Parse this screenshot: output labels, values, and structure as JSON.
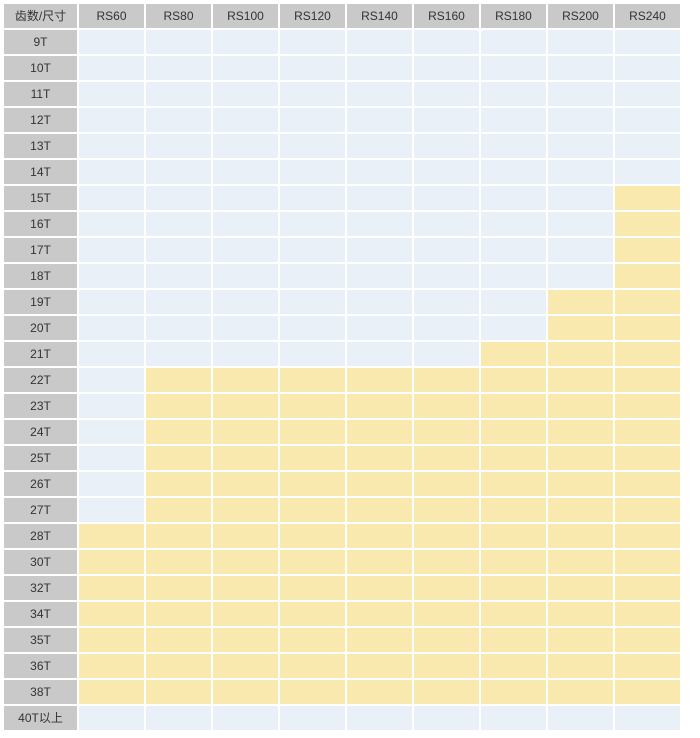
{
  "chart_data": {
    "type": "heatmap",
    "title": "",
    "row_header_label": "齿数/尺寸",
    "columns": [
      "RS60",
      "RS80",
      "RS100",
      "RS120",
      "RS140",
      "RS160",
      "RS180",
      "RS200",
      "RS240"
    ],
    "rows": [
      "9T",
      "10T",
      "11T",
      "12T",
      "13T",
      "14T",
      "15T",
      "16T",
      "17T",
      "18T",
      "19T",
      "20T",
      "21T",
      "22T",
      "23T",
      "24T",
      "25T",
      "26T",
      "27T",
      "28T",
      "30T",
      "32T",
      "34T",
      "35T",
      "36T",
      "38T",
      "40T以上"
    ],
    "values": [
      [
        0,
        0,
        0,
        0,
        0,
        0,
        0,
        0,
        0
      ],
      [
        0,
        0,
        0,
        0,
        0,
        0,
        0,
        0,
        0
      ],
      [
        0,
        0,
        0,
        0,
        0,
        0,
        0,
        0,
        0
      ],
      [
        0,
        0,
        0,
        0,
        0,
        0,
        0,
        0,
        0
      ],
      [
        0,
        0,
        0,
        0,
        0,
        0,
        0,
        0,
        0
      ],
      [
        0,
        0,
        0,
        0,
        0,
        0,
        0,
        0,
        0
      ],
      [
        0,
        0,
        0,
        0,
        0,
        0,
        0,
        0,
        1
      ],
      [
        0,
        0,
        0,
        0,
        0,
        0,
        0,
        0,
        1
      ],
      [
        0,
        0,
        0,
        0,
        0,
        0,
        0,
        0,
        1
      ],
      [
        0,
        0,
        0,
        0,
        0,
        0,
        0,
        0,
        1
      ],
      [
        0,
        0,
        0,
        0,
        0,
        0,
        0,
        1,
        1
      ],
      [
        0,
        0,
        0,
        0,
        0,
        0,
        0,
        1,
        1
      ],
      [
        0,
        0,
        0,
        0,
        0,
        0,
        1,
        1,
        1
      ],
      [
        0,
        1,
        1,
        1,
        1,
        1,
        1,
        1,
        1
      ],
      [
        0,
        1,
        1,
        1,
        1,
        1,
        1,
        1,
        1
      ],
      [
        0,
        1,
        1,
        1,
        1,
        1,
        1,
        1,
        1
      ],
      [
        0,
        1,
        1,
        1,
        1,
        1,
        1,
        1,
        1
      ],
      [
        0,
        1,
        1,
        1,
        1,
        1,
        1,
        1,
        1
      ],
      [
        0,
        1,
        1,
        1,
        1,
        1,
        1,
        1,
        1
      ],
      [
        1,
        1,
        1,
        1,
        1,
        1,
        1,
        1,
        1
      ],
      [
        1,
        1,
        1,
        1,
        1,
        1,
        1,
        1,
        1
      ],
      [
        1,
        1,
        1,
        1,
        1,
        1,
        1,
        1,
        1
      ],
      [
        1,
        1,
        1,
        1,
        1,
        1,
        1,
        1,
        1
      ],
      [
        1,
        1,
        1,
        1,
        1,
        1,
        1,
        1,
        1
      ],
      [
        1,
        1,
        1,
        1,
        1,
        1,
        1,
        1,
        1
      ],
      [
        1,
        1,
        1,
        1,
        1,
        1,
        1,
        1,
        1
      ],
      [
        0,
        0,
        0,
        0,
        0,
        0,
        0,
        0,
        0
      ]
    ],
    "value_meaning": {
      "0": "base-blue-cell",
      "1": "highlighted-yellow-cell"
    },
    "legend_position": "none",
    "grid": "white 2px gaps between flat cells"
  },
  "colors": {
    "header_bg": "#c9c9c9",
    "row_label_bg": "#c9c9c9",
    "cell_base": "#e9f0f7",
    "cell_highlight": "#f9e9af",
    "text": "#333333",
    "page_bg": "#ffffff"
  }
}
